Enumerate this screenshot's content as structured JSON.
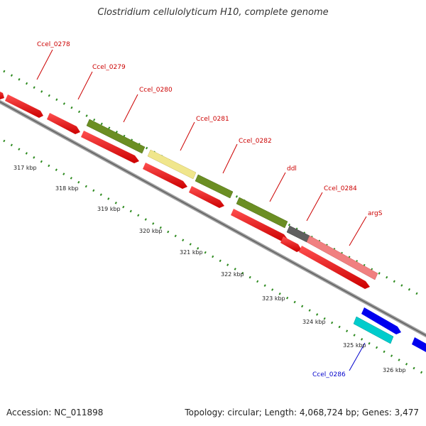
{
  "title": "Clostridium cellulolyticum H10, complete genome",
  "footer": {
    "accession": "Accession: NC_011898",
    "summary": "Topology: circular; Length: 4,068,724 bp; Genes: 3,477"
  },
  "colors": {
    "red_cds": "#ff0000",
    "olive": "#6b8e23",
    "pale_yellow": "#f0e68c",
    "gray": "#606060",
    "salmon": "#f08080",
    "blue": "#0000ee",
    "cyan": "#00cccc",
    "backbone": "#808080",
    "ticks": "#2e8b20",
    "label_red": "#cc0000",
    "label_blue": "#0000cc"
  },
  "kbp_labels": [
    "317 kbp",
    "318 kbp",
    "319 kbp",
    "320 kbp",
    "321 kbp",
    "322 kbp",
    "323 kbp",
    "324 kbp",
    "325 kbp",
    "326 kbp"
  ],
  "gene_labels": [
    {
      "text": "Ccel_0278",
      "color": "red"
    },
    {
      "text": "Ccel_0279",
      "color": "red"
    },
    {
      "text": "Ccel_0280",
      "color": "red"
    },
    {
      "text": "Ccel_0281",
      "color": "red"
    },
    {
      "text": "Ccel_0282",
      "color": "red"
    },
    {
      "text": "ddl",
      "color": "red"
    },
    {
      "text": "Ccel_0284",
      "color": "red"
    },
    {
      "text": "argS",
      "color": "red"
    },
    {
      "text": "Ccel_0286",
      "color": "blue"
    }
  ]
}
